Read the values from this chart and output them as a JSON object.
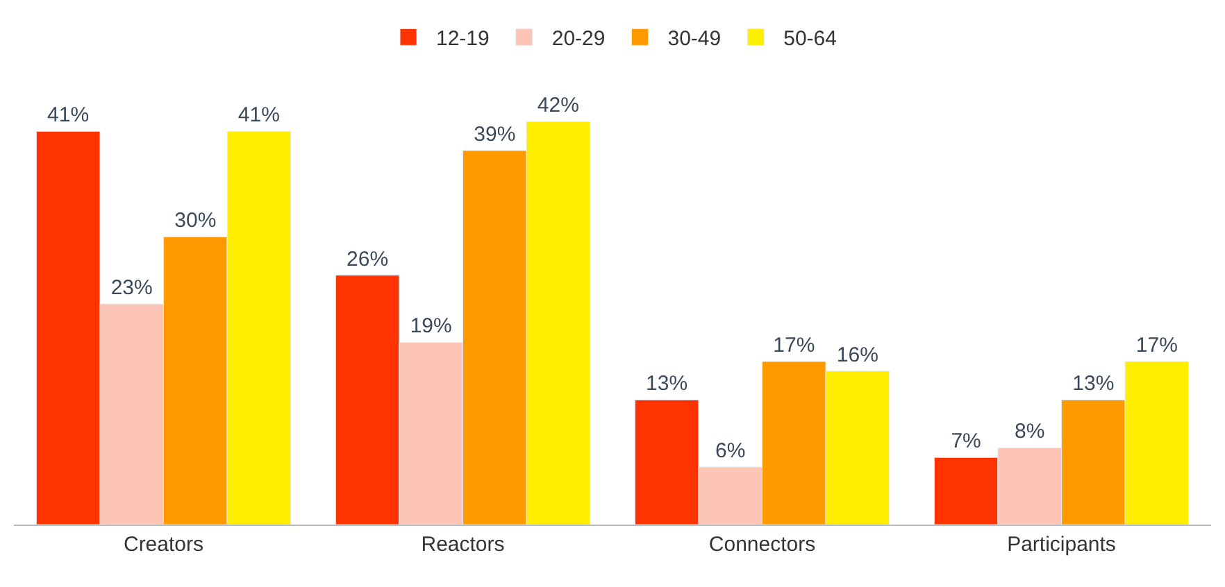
{
  "chart_data": {
    "type": "bar",
    "categories": [
      "Creators",
      "Reactors",
      "Connectors",
      "Participants"
    ],
    "series": [
      {
        "name": "12-19",
        "color": "#ff3300",
        "values": [
          41,
          26,
          13,
          7
        ],
        "value_labels": [
          "41%",
          "26%",
          "13%",
          "7%"
        ]
      },
      {
        "name": "20-29",
        "color": "#fcc5b5",
        "values": [
          23,
          19,
          6,
          8
        ],
        "value_labels": [
          "23%",
          "19%",
          "6%",
          "8%"
        ]
      },
      {
        "name": "30-49",
        "color": "#ff9900",
        "values": [
          30,
          39,
          17,
          13
        ],
        "value_labels": [
          "30%",
          "39%",
          "17%",
          "13%"
        ]
      },
      {
        "name": "50-64",
        "color": "#ffee00",
        "values": [
          41,
          42,
          16,
          17
        ],
        "value_labels": [
          "41%",
          "42%",
          "16%",
          "17%"
        ]
      }
    ],
    "legend": "top",
    "tick_labels": "x"
  }
}
